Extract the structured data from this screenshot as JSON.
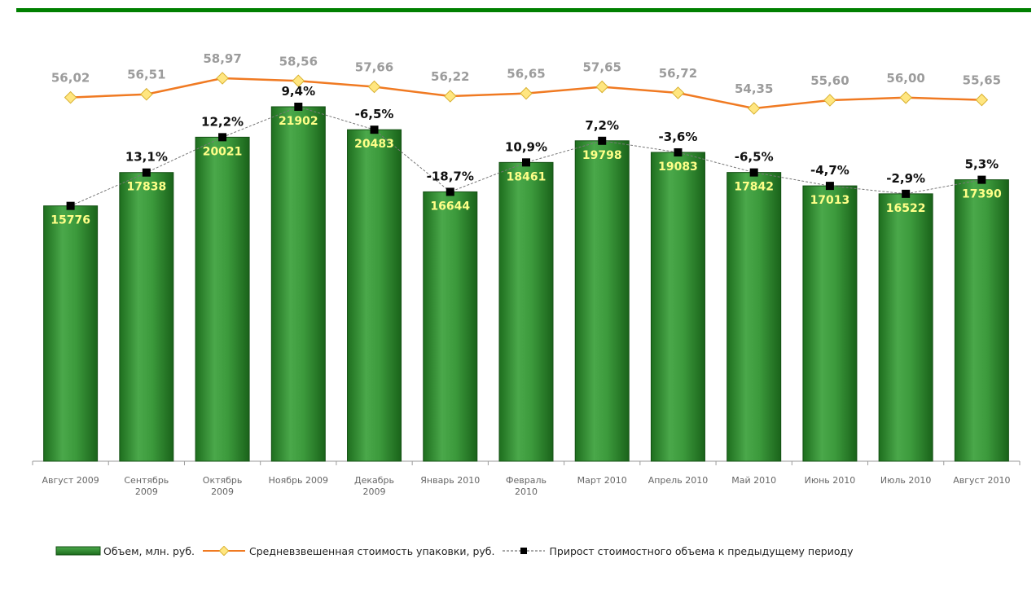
{
  "chart_data": {
    "type": "bar",
    "categories": [
      [
        "Август 2009"
      ],
      [
        "Сентябрь",
        "2009"
      ],
      [
        "Октябрь",
        "2009"
      ],
      [
        "Ноябрь 2009"
      ],
      [
        "Декабрь",
        "2009"
      ],
      [
        "Январь 2010"
      ],
      [
        "Февраль",
        "2010"
      ],
      [
        "Март 2010"
      ],
      [
        "Апрель 2010"
      ],
      [
        "Май 2010"
      ],
      [
        "Июнь 2010"
      ],
      [
        "Июль 2010"
      ],
      [
        "Август 2010"
      ]
    ],
    "series": [
      {
        "name": "Объем, млн. руб.",
        "type": "bar",
        "color": "#2f8f2f",
        "values": [
          15776,
          17838,
          20021,
          21902,
          20483,
          16644,
          18461,
          19798,
          19083,
          17842,
          17013,
          16522,
          17390
        ],
        "labels": [
          "15776",
          "17838",
          "20021",
          "21902",
          "20483",
          "16644",
          "18461",
          "19798",
          "19083",
          "17842",
          "17013",
          "16522",
          "17390"
        ]
      },
      {
        "name": "Средневзвешенная стоимость упаковки, руб.",
        "type": "line",
        "color": "#f07a22",
        "values": [
          56.02,
          56.51,
          58.97,
          58.56,
          57.66,
          56.22,
          56.65,
          57.65,
          56.72,
          54.35,
          55.6,
          56.0,
          55.65
        ],
        "labels": [
          "56,02",
          "56,51",
          "58,97",
          "58,56",
          "57,66",
          "56,22",
          "56,65",
          "57,65",
          "56,72",
          "54,35",
          "55,60",
          "56,00",
          "55,65"
        ]
      },
      {
        "name": "Прирост стоимостного объема к предыдущему периоду",
        "type": "line",
        "color": "#000000",
        "values": [
          null,
          13.1,
          12.2,
          9.4,
          -6.5,
          -18.7,
          10.9,
          7.2,
          -3.6,
          -6.5,
          -4.7,
          -2.9,
          5.3
        ],
        "labels": [
          "",
          "13,1%",
          "12,2%",
          "9,4%",
          "-6,5%",
          "-18,7%",
          "10,9%",
          "7,2%",
          "-3,6%",
          "-6,5%",
          "-4,7%",
          "-2,9%",
          "5,3%"
        ]
      }
    ],
    "ylim": [
      0,
      22000
    ],
    "grid": false,
    "legend": "bottom"
  }
}
